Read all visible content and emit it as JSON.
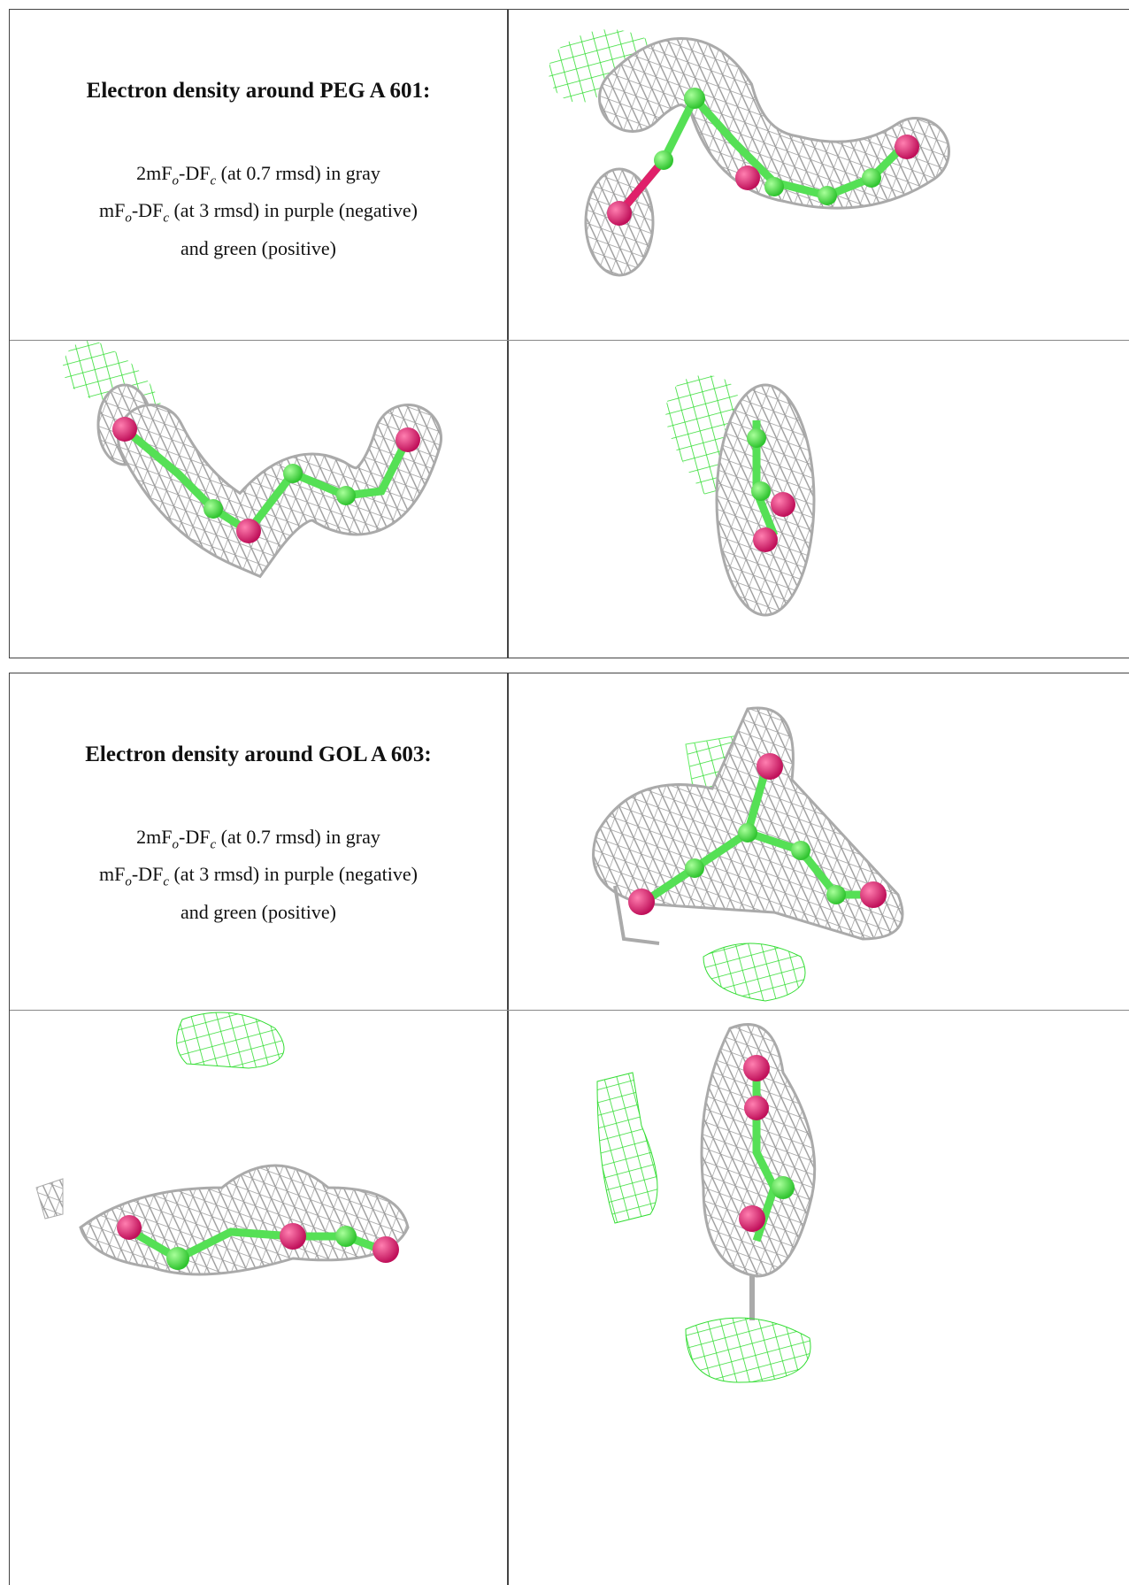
{
  "sections": [
    {
      "title": "Electron density around PEG A 601:",
      "legend": {
        "line1": [
          "2mF",
          "o",
          "-DF",
          "c",
          " (at 0.7 rmsd) in gray"
        ],
        "line2": [
          "mF",
          "o",
          "-DF",
          "c",
          " (at 3 rmsd) in purple (negative)"
        ],
        "line3": "and green (positive)"
      }
    },
    {
      "title": "Electron density around GOL A 603:",
      "legend": {
        "line1": [
          "2mF",
          "o",
          "-DF",
          "c",
          " (at 0.7 rmsd) in gray"
        ],
        "line2": [
          "mF",
          "o",
          "-DF",
          "c",
          " (at 3 rmsd) in purple (negative)"
        ],
        "line3": "and green (positive)"
      }
    }
  ]
}
